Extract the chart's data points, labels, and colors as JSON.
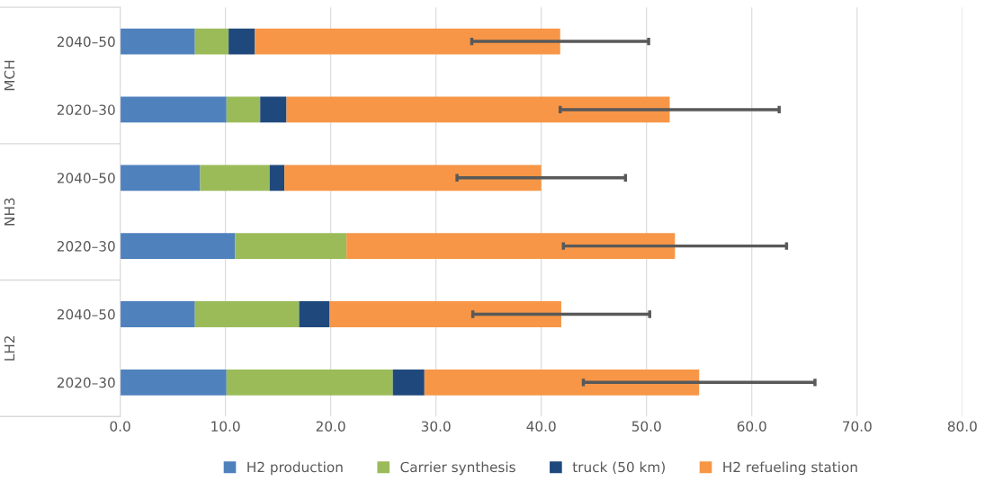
{
  "chart_data": {
    "type": "bar",
    "orientation": "horizontal",
    "stacked": true,
    "categories": [
      "2040–50",
      "2020–30",
      "2040–50",
      "2020–30",
      "2040–50",
      "2020–30"
    ],
    "annotations": [
      "MCH",
      "NH3",
      "LH2"
    ],
    "series": [
      {
        "name": "H2 production",
        "color": "#4f81bd",
        "values": [
          7.1,
          10.1,
          7.6,
          10.9,
          7.1,
          10.1
        ]
      },
      {
        "name": "Carrier synthesis",
        "color": "#9bbb59",
        "values": [
          3.2,
          3.2,
          6.6,
          10.6,
          9.9,
          15.8
        ]
      },
      {
        "name": "truck (50 km)",
        "color": "#1f497d",
        "values": [
          2.5,
          2.5,
          1.4,
          0,
          2.9,
          3.0
        ]
      },
      {
        "name": "H2 refueling station",
        "color": "#f79646",
        "values": [
          29.0,
          36.4,
          24.4,
          31.2,
          22.0,
          26.1
        ],
        "errors": [
          8.4,
          10.4,
          8.0,
          10.6,
          8.4,
          11.0
        ]
      }
    ],
    "xlim": [
      0,
      80
    ],
    "xticks": [
      {
        "value": 0,
        "label": "0.0"
      },
      {
        "value": 10,
        "label": "10.0"
      },
      {
        "value": 20,
        "label": "20.0"
      },
      {
        "value": 30,
        "label": "30.0"
      },
      {
        "value": 40,
        "label": "40.0"
      },
      {
        "value": 50,
        "label": "50.0"
      },
      {
        "value": 60,
        "label": "60.0"
      },
      {
        "value": 70,
        "label": "70.0"
      },
      {
        "value": 80,
        "label": "80.0"
      }
    ],
    "grid": "x",
    "legend": "bottom"
  }
}
